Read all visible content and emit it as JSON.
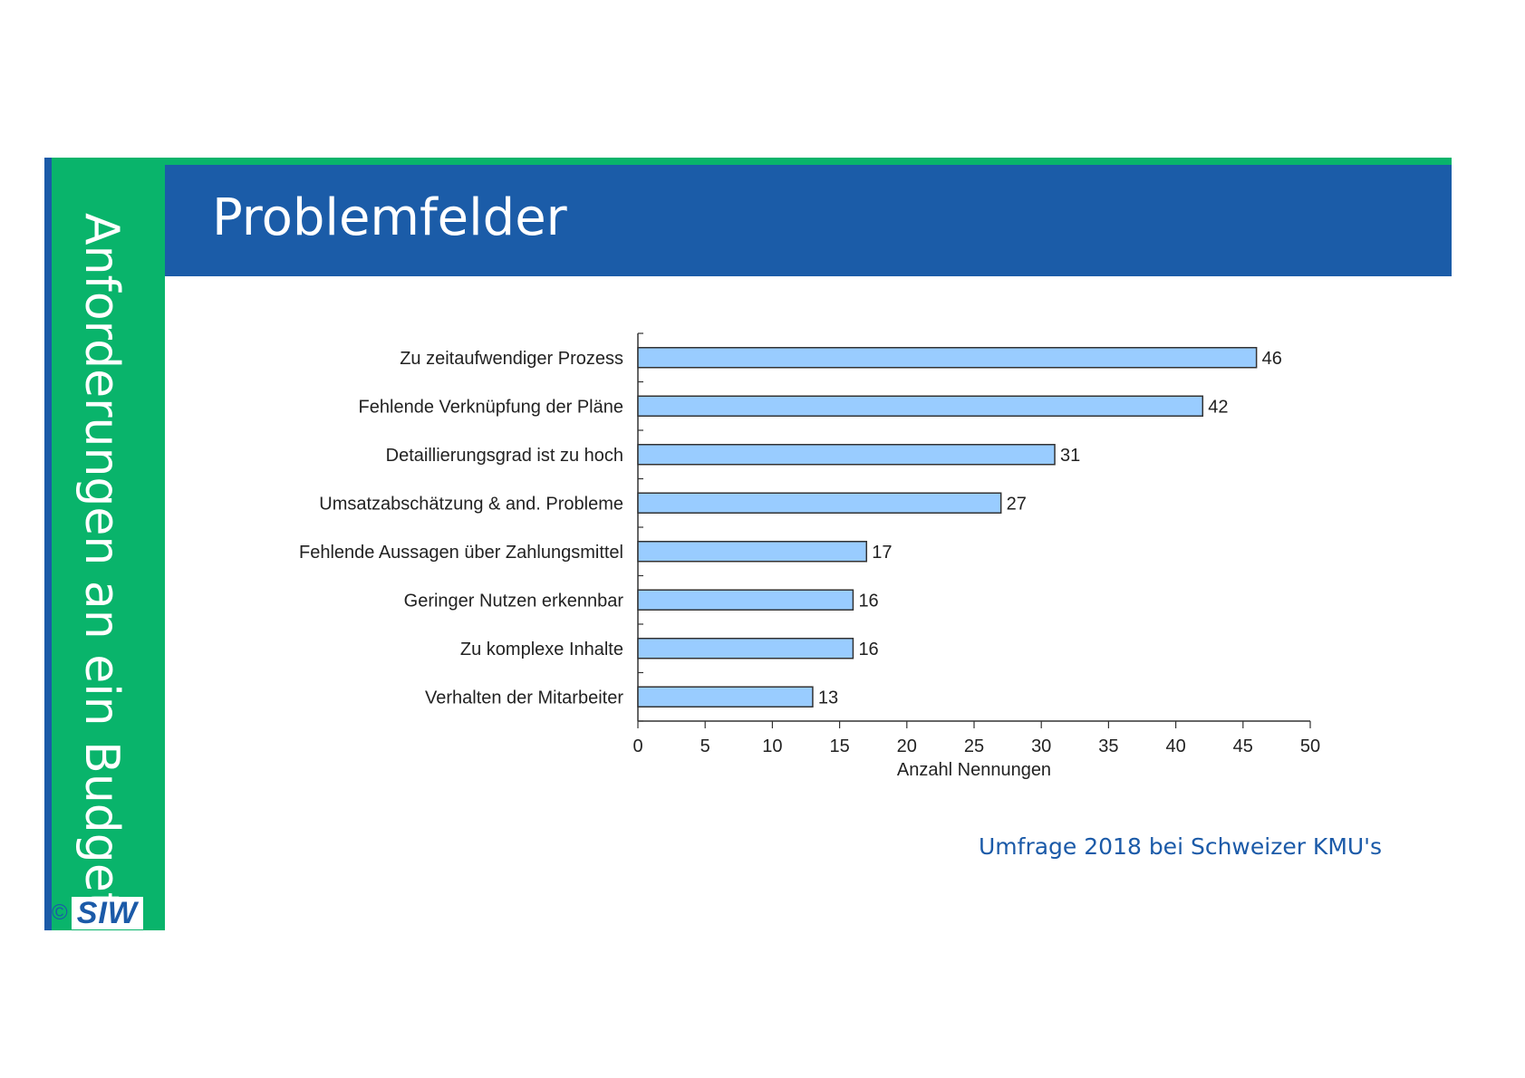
{
  "sidebar": {
    "title": "Anforderungen an ein Budget"
  },
  "logo": {
    "copyright": "©",
    "text": "SIW"
  },
  "header": {
    "title": "Problemfelder"
  },
  "source": "Umfrage 2018 bei Schweizer KMU's",
  "colors": {
    "green": "#09b46b",
    "blue": "#1b5ca8",
    "bar_fill": "#99ccff",
    "bar_stroke": "#333333"
  },
  "chart_data": {
    "type": "bar",
    "orientation": "horizontal",
    "categories": [
      "Zu zeitaufwendiger Prozess",
      "Fehlende Verknüpfung der Pläne",
      "Detaillierungsgrad ist zu hoch",
      "Umsatzabschätzung & and. Probleme",
      "Fehlende Aussagen über Zahlungsmittel",
      "Geringer Nutzen erkennbar",
      "Zu komplexe Inhalte",
      "Verhalten der Mitarbeiter"
    ],
    "values": [
      46,
      42,
      31,
      27,
      17,
      16,
      16,
      13
    ],
    "xlabel": "Anzahl Nennungen",
    "xlim": [
      0,
      50
    ],
    "xticks": [
      0,
      5,
      10,
      15,
      20,
      25,
      30,
      35,
      40,
      45,
      50
    ],
    "grid": false,
    "legend": "none"
  }
}
